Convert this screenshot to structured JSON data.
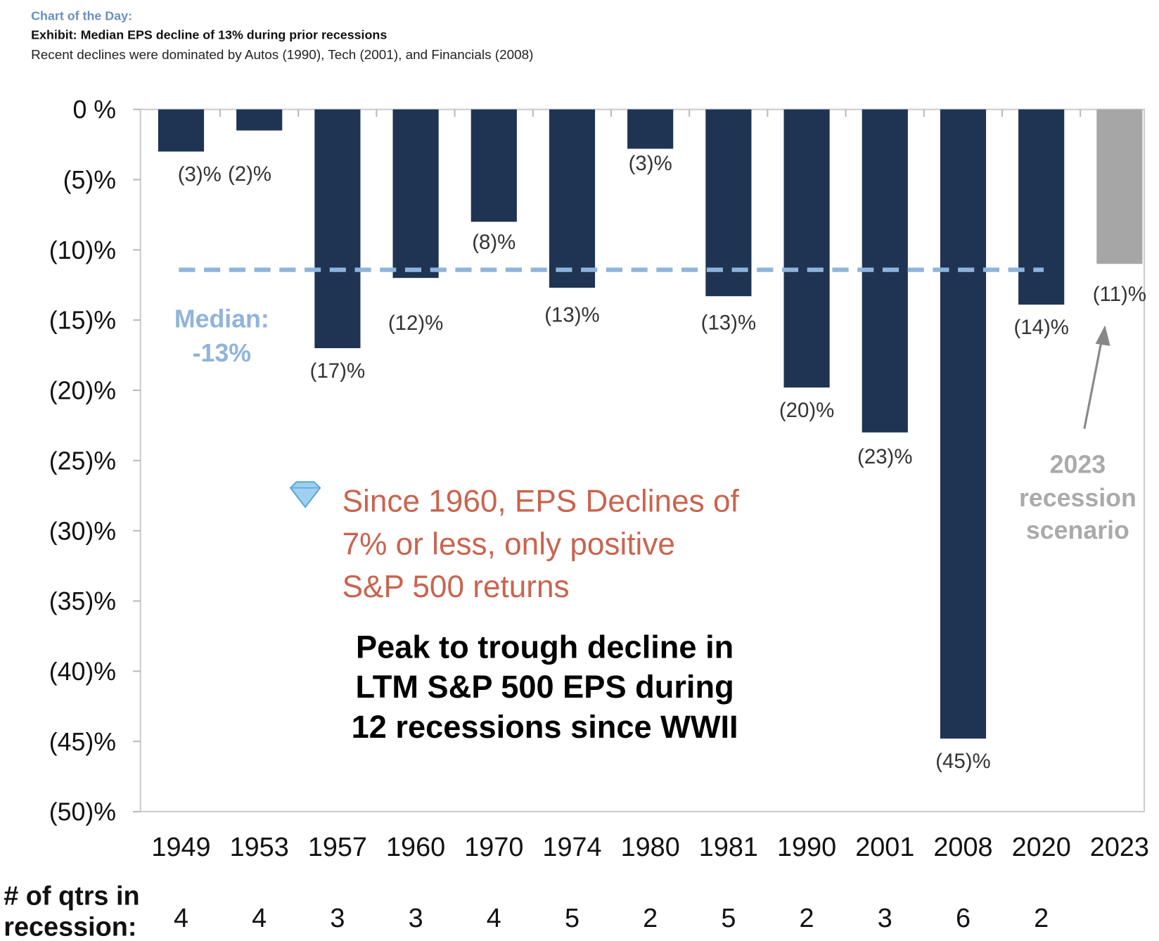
{
  "header": {
    "kicker": "Chart of the Day:",
    "title": "Exhibit: Median EPS decline of 13% during prior recessions",
    "subtitle": "Recent declines were dominated by Autos (1990), Tech (2001), and Financials (2008)"
  },
  "chart_data": {
    "type": "bar",
    "categories": [
      "1949",
      "1953",
      "1957",
      "1960",
      "1970",
      "1974",
      "1980",
      "1981",
      "1990",
      "2001",
      "2008",
      "2020",
      "2023"
    ],
    "values": [
      -3,
      -1.5,
      -17,
      -12,
      -8,
      -12.7,
      -2.8,
      -13.3,
      -19.8,
      -23,
      -44.8,
      -13.9,
      -11
    ],
    "data_labels": [
      "(3)%",
      "(2)%",
      "(17)%",
      "(12)%",
      "(8)%",
      "(13)%",
      "(3)%",
      "(13)%",
      "(20)%",
      "(23)%",
      "(45)%",
      "(14)%",
      "(11)%"
    ],
    "quarters_in_recession": [
      "4",
      "4",
      "3",
      "3",
      "4",
      "5",
      "2",
      "5",
      "2",
      "3",
      "6",
      "2",
      ""
    ],
    "ylim": [
      -50,
      0
    ],
    "yticks": [
      0,
      -5,
      -10,
      -15,
      -20,
      -25,
      -30,
      -35,
      -40,
      -45,
      -50
    ],
    "ytick_labels": [
      "0 %",
      "(5)%",
      "(10)%",
      "(15)%",
      "(20)%",
      "(25)%",
      "(30)%",
      "(35)%",
      "(40)%",
      "(45)%",
      "(50)%"
    ],
    "median": -13,
    "colors": {
      "historical": "#1f3352",
      "scenario": "#a6a6a6",
      "median": "#8fb4dc",
      "note": "#c9644f",
      "kicker": "#6b8fbf"
    },
    "grid": false,
    "row_label": [
      "# of qtrs in",
      "recession:"
    ],
    "annotations": {
      "median_label": [
        "Median:",
        "-13%"
      ],
      "note": [
        "Since 1960, EPS Declines of",
        "7% or less, only positive",
        "S&P 500 returns"
      ],
      "note_icon": "diamond-icon",
      "caption": [
        "Peak to trough decline in",
        "LTM S&P 500 EPS during",
        "12 recessions since WWII"
      ],
      "scenario": [
        "2023",
        "recession",
        "scenario"
      ]
    }
  }
}
